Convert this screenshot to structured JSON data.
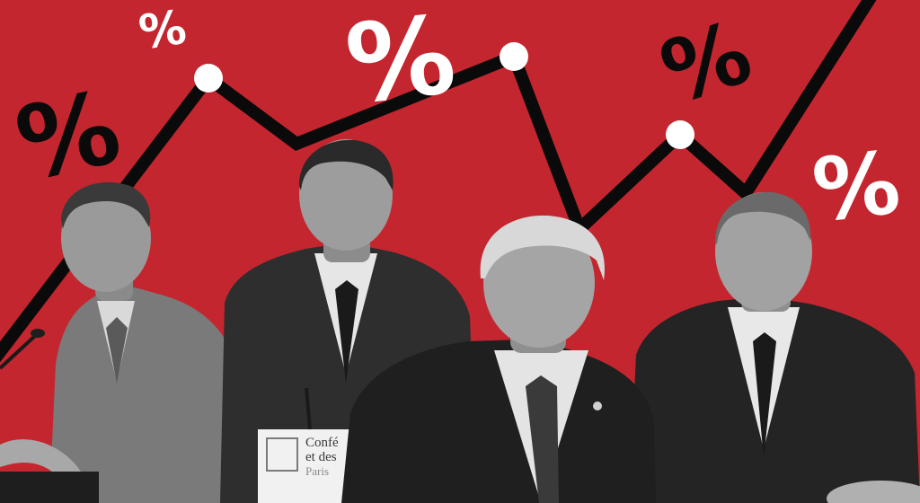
{
  "collage": {
    "background_color": "#c3262f",
    "line_color": "#000000",
    "marker_color": "#ffffff",
    "percent_symbols": [
      "%",
      "%",
      "%",
      "%",
      "%",
      "%"
    ],
    "chart_data": {
      "type": "line",
      "title": "",
      "series": [
        {
          "values": [
            0.08,
            0.88,
            0.7,
            0.52,
            0.9,
            0.32,
            0.4,
            0.72,
            0.55,
            1.0
          ]
        }
      ]
    }
  },
  "placard": {
    "line1": "Confé",
    "line2": "et des",
    "line3": "Paris"
  }
}
